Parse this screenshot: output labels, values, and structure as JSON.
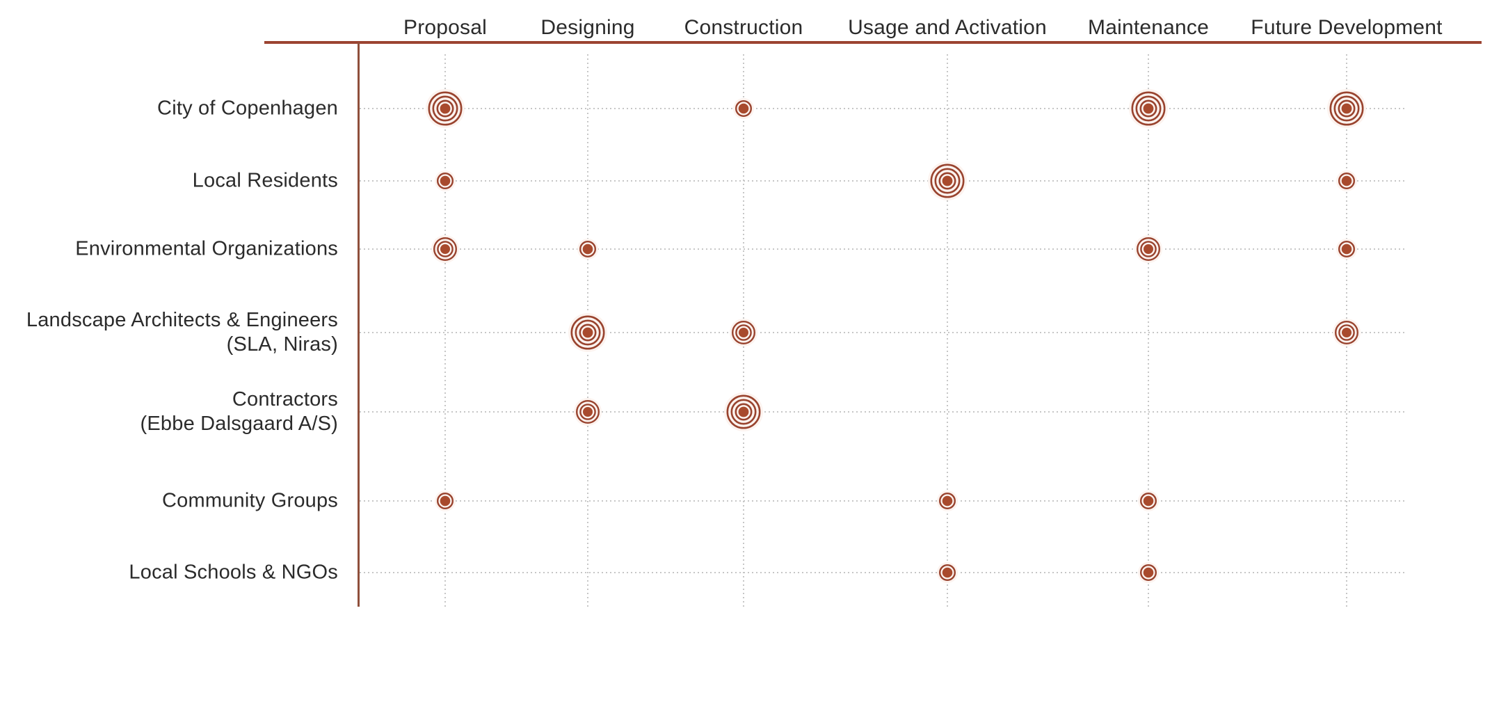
{
  "chart_data": {
    "type": "heatmap",
    "subtype": "stakeholder-involvement-dot-matrix",
    "marker_style": "concentric-circle bullseye; marker size / ring count encodes involvement level",
    "title": "",
    "columns": [
      "Proposal",
      "Designing",
      "Construction",
      "Usage and Activation",
      "Maintenance",
      "Future Development"
    ],
    "rows": [
      {
        "label": "City of Copenhagen",
        "label_lines": [
          "City of Copenhagen"
        ],
        "values": [
          3,
          0,
          1,
          0,
          3,
          3
        ]
      },
      {
        "label": "Local Residents",
        "label_lines": [
          "Local Residents"
        ],
        "values": [
          1,
          0,
          0,
          3,
          0,
          1
        ]
      },
      {
        "label": "Environmental Organizations",
        "label_lines": [
          "Environmental Organizations"
        ],
        "values": [
          2,
          1,
          0,
          0,
          2,
          1
        ]
      },
      {
        "label": "Landscape Architects & Engineers (SLA, Niras)",
        "label_lines": [
          "Landscape Architects & Engineers",
          "(SLA, Niras)"
        ],
        "values": [
          0,
          3,
          2,
          0,
          0,
          2
        ]
      },
      {
        "label": "Contractors (Ebbe Dalsgaard A/S)",
        "label_lines": [
          "Contractors",
          "(Ebbe Dalsgaard A/S)"
        ],
        "values": [
          0,
          2,
          3,
          0,
          0,
          0
        ]
      },
      {
        "label": "Community Groups",
        "label_lines": [
          "Community Groups"
        ],
        "values": [
          1,
          0,
          0,
          1,
          1,
          0
        ]
      },
      {
        "label": "Local Schools & NGOs",
        "label_lines": [
          "Local Schools & NGOs"
        ],
        "values": [
          0,
          0,
          0,
          1,
          1,
          0
        ]
      }
    ],
    "value_encoding": {
      "0": "blank (no marker)",
      "1": "small: dot + 1 ring",
      "2": "medium: dot + 2 rings",
      "3": "large: dot + 3 rings"
    },
    "legend": null,
    "grid": "dotted light-gray guides at each row and column",
    "colors": {
      "marker_dot": "#A84A2D",
      "marker_ring": "#99432E",
      "marker_halo": "#FCF3EF",
      "axis_horizontal": "#9C4431",
      "axis_vertical": "#8F4F3B",
      "gridline": "#C6C6C6",
      "text": "#2B2B2B",
      "background": "#FFFFFF"
    }
  }
}
